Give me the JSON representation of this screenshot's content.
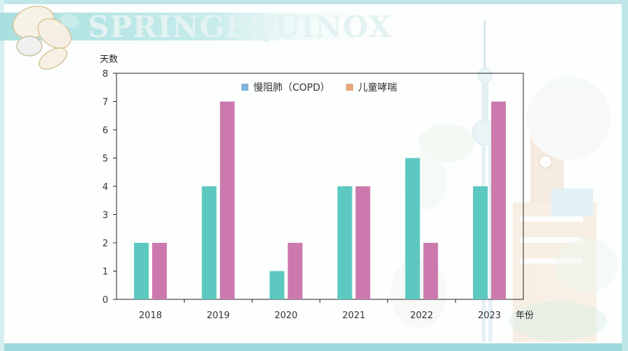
{
  "banner": {
    "text": "SPRINGEQUINOX"
  },
  "colors": {
    "series1": "#5cc8c0",
    "series2": "#cc7aad",
    "legend2_swatch": "#e7a77a",
    "frame": "#9fd8dd"
  },
  "chart_data": {
    "type": "bar",
    "categories": [
      "2018",
      "2019",
      "2020",
      "2021",
      "2022",
      "2023"
    ],
    "series": [
      {
        "name": "慢阻肺（COPD）",
        "values": [
          2,
          4,
          1,
          4,
          5,
          4
        ]
      },
      {
        "name": "儿童哮喘",
        "values": [
          2,
          7,
          2,
          4,
          2,
          7
        ]
      }
    ],
    "ylabel": "天数",
    "xlabel": "年份",
    "ylim": [
      0,
      8
    ],
    "yticks": [
      "0",
      "1",
      "2",
      "3",
      "4",
      "5",
      "6",
      "7",
      "8"
    ],
    "grid": false,
    "legend": "top"
  }
}
